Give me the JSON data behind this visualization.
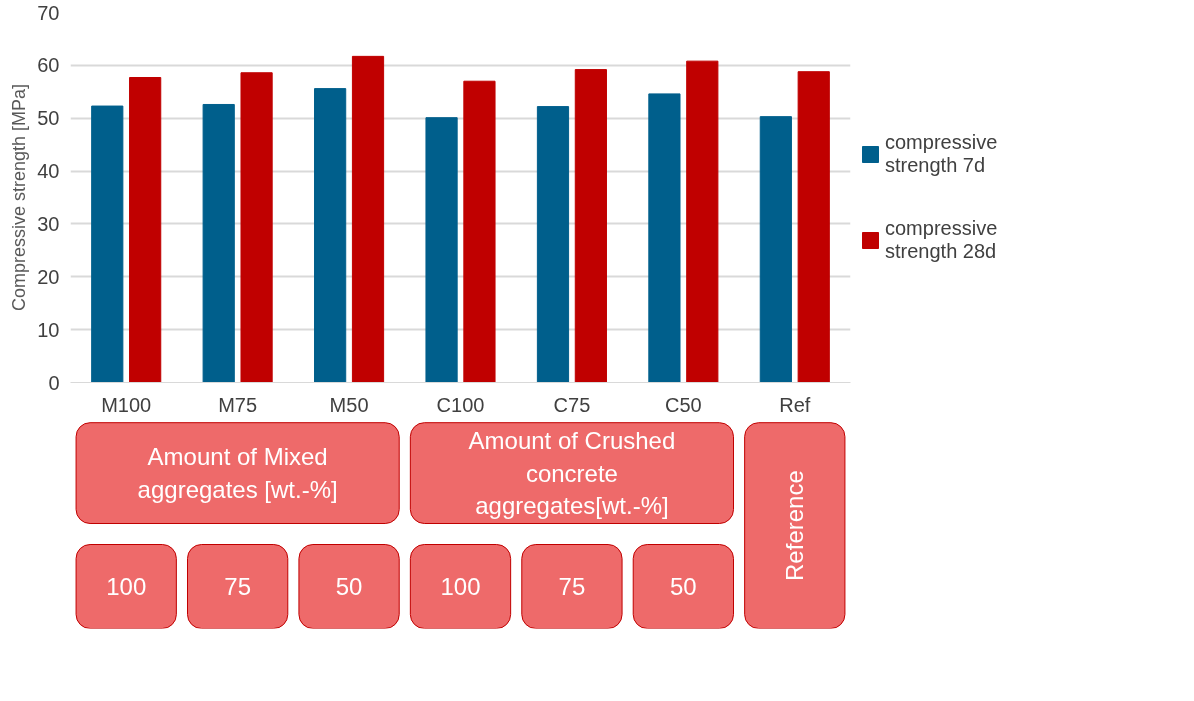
{
  "chart_data": {
    "type": "bar",
    "ylabel": "Compressive strength [MPa]",
    "categories": [
      "M100",
      "M75",
      "M50",
      "C100",
      "C75",
      "C50",
      "Ref"
    ],
    "series": [
      {
        "name": "compressive strength 7d",
        "color": "#005f8c",
        "values": [
          52.3,
          52.6,
          55.6,
          50.1,
          52.2,
          54.6,
          50.3
        ]
      },
      {
        "name": "compressive strength 28d",
        "color": "#c00000",
        "values": [
          57.7,
          58.6,
          61.7,
          57.0,
          59.2,
          60.8,
          58.8
        ]
      }
    ],
    "ylim": [
      0,
      70
    ],
    "yticks": [
      0,
      10,
      20,
      30,
      40,
      50,
      60,
      70
    ],
    "grid": "y",
    "legend": "right",
    "annotations": [
      "Amount of Mixed aggregates [wt.-%]",
      "Amount of Crushed concrete aggregates[wt.-%]",
      "Reference",
      "100",
      "75",
      "50",
      "100",
      "75",
      "50"
    ]
  }
}
